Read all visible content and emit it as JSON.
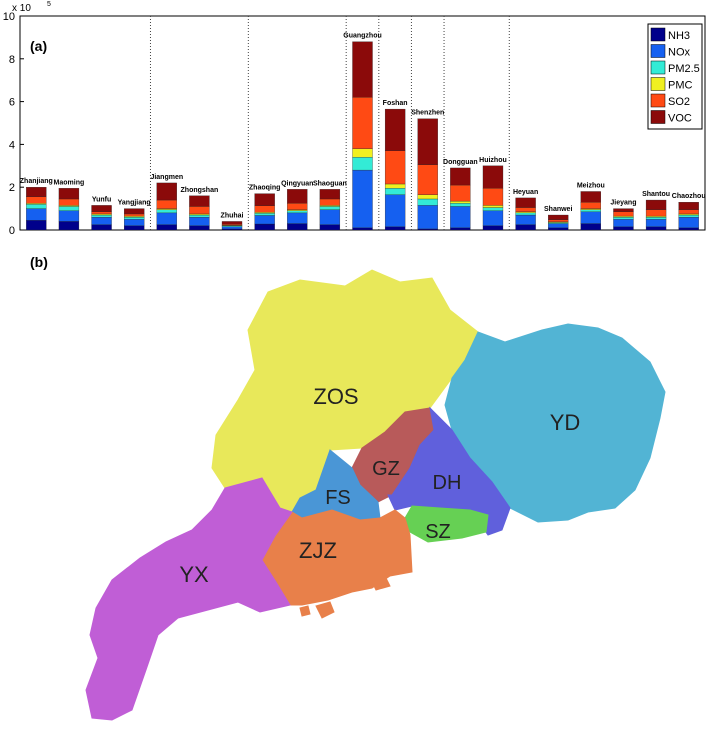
{
  "panel_a_label": "(a)",
  "panel_b_label": "(b)",
  "chart_data": {
    "type": "bar",
    "stacked": true,
    "title": "",
    "xlabel": "",
    "ylabel": "",
    "y_multiplier_label": "x 10",
    "y_multiplier_exponent": "5",
    "ylim": [
      0,
      10
    ],
    "yticks": [
      0,
      2,
      4,
      6,
      8,
      10
    ],
    "grid": false,
    "legend_position": "top-right",
    "categories": [
      "Zhanjiang",
      "Maoming",
      "Yunfu",
      "Yangjiang",
      "Jiangmen",
      "Zhongshan",
      "Zhuhai",
      "Zhaoqing",
      "Qingyuan",
      "Shaoguan",
      "Guangzhou",
      "Foshan",
      "Shenzhen",
      "Dongguan",
      "Huizhou",
      "Heyuan",
      "Shanwei",
      "Meizhou",
      "Jieyang",
      "Shantou",
      "Chaozhou"
    ],
    "group_separators_after": [
      3,
      6,
      9,
      10,
      11,
      12,
      14
    ],
    "series": [
      {
        "name": "NH3",
        "color": "#00008B",
        "values": [
          0.45,
          0.4,
          0.25,
          0.2,
          0.25,
          0.2,
          0.05,
          0.28,
          0.3,
          0.25,
          0.1,
          0.15,
          0.05,
          0.1,
          0.2,
          0.25,
          0.1,
          0.3,
          0.15,
          0.15,
          0.1
        ]
      },
      {
        "name": "NOx",
        "color": "#1560F0",
        "values": [
          0.55,
          0.5,
          0.35,
          0.3,
          0.55,
          0.4,
          0.1,
          0.4,
          0.5,
          0.7,
          2.7,
          1.5,
          1.1,
          1.0,
          0.7,
          0.45,
          0.2,
          0.55,
          0.35,
          0.35,
          0.5
        ]
      },
      {
        "name": "PM2.5",
        "color": "#33EBD6",
        "values": [
          0.2,
          0.2,
          0.1,
          0.1,
          0.15,
          0.1,
          0.05,
          0.1,
          0.1,
          0.15,
          0.6,
          0.3,
          0.3,
          0.15,
          0.15,
          0.1,
          0.05,
          0.1,
          0.1,
          0.1,
          0.1
        ]
      },
      {
        "name": "PMC",
        "color": "#F0F020",
        "values": [
          0.05,
          0.05,
          0.05,
          0.05,
          0.05,
          0.05,
          0.02,
          0.05,
          0.05,
          0.05,
          0.4,
          0.2,
          0.2,
          0.1,
          0.1,
          0.05,
          0.03,
          0.05,
          0.05,
          0.05,
          0.05
        ]
      },
      {
        "name": "SO2",
        "color": "#FF4A14",
        "values": [
          0.3,
          0.3,
          0.1,
          0.1,
          0.4,
          0.35,
          0.05,
          0.3,
          0.3,
          0.3,
          2.4,
          1.55,
          1.4,
          0.75,
          0.8,
          0.2,
          0.1,
          0.3,
          0.2,
          0.3,
          0.2
        ]
      },
      {
        "name": "VOC",
        "color": "#8B0A0A",
        "values": [
          0.45,
          0.5,
          0.3,
          0.25,
          0.8,
          0.5,
          0.13,
          0.57,
          0.65,
          0.45,
          2.6,
          1.95,
          2.15,
          0.8,
          1.05,
          0.45,
          0.22,
          0.5,
          0.15,
          0.45,
          0.35
        ]
      }
    ]
  },
  "map": {
    "regions": [
      {
        "id": "zos",
        "label": "ZOS",
        "color": "#E8E85A"
      },
      {
        "id": "yd",
        "label": "YD",
        "color": "#52B4D4"
      },
      {
        "id": "yx",
        "label": "YX",
        "color": "#C05ED6"
      },
      {
        "id": "zjz",
        "label": "ZJZ",
        "color": "#E8804A"
      },
      {
        "id": "fs",
        "label": "FS",
        "color": "#4A96D6"
      },
      {
        "id": "gz",
        "label": "GZ",
        "color": "#B85A5A"
      },
      {
        "id": "dh",
        "label": "DH",
        "color": "#6060DC"
      },
      {
        "id": "sz",
        "label": "SZ",
        "color": "#66D054"
      }
    ]
  }
}
